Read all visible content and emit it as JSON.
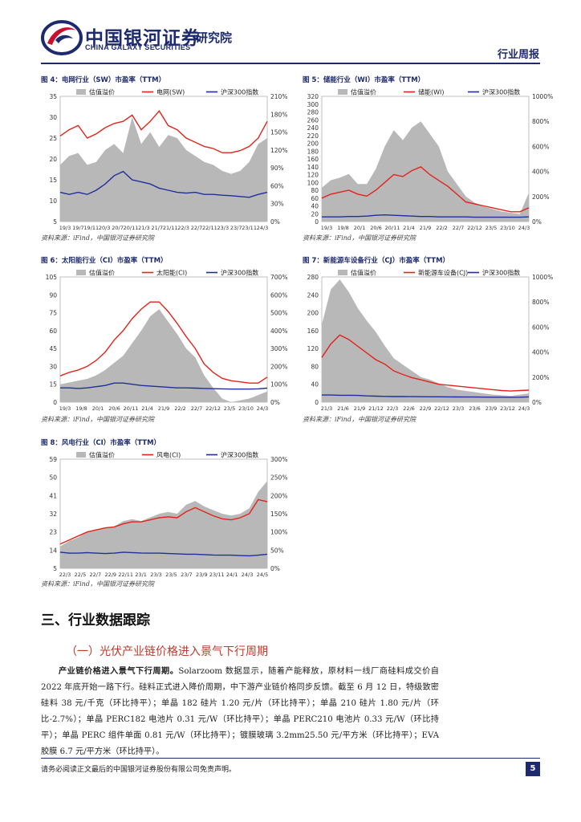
{
  "header": {
    "company_cn": "中国银河证券",
    "company_en": "CHINA GALAXY SECURITIES",
    "institute": "研究院",
    "report_type": "行业周报"
  },
  "colors": {
    "brand": "#1d2a6e",
    "logo_red": "#c8102e",
    "gray_fill": "#b8b8b8",
    "red_line": "#e3231b",
    "blue_line": "#1f2f9a"
  },
  "charts": [
    {
      "id": "fig4",
      "title": "图 4：电网行业（SW）市盈率（TTM）",
      "source": "资料来源：iFind，中国银河证券研究院",
      "legend": [
        "估值溢价",
        "电网(SW)",
        "沪深300指数"
      ],
      "left_ticks": [
        "35",
        "30",
        "25",
        "20",
        "15",
        "10",
        "5"
      ],
      "right_ticks": [
        "210%",
        "180%",
        "150%",
        "120%",
        "90%",
        "60%",
        "30%",
        "0%"
      ],
      "x_ticks": [
        "19/3",
        "19/7",
        "19/11",
        "20/3",
        "20/7",
        "20/11",
        "21/3",
        "21/7",
        "21/11",
        "22/3",
        "22/7",
        "22/11",
        "23/3",
        "23/7",
        "23/11",
        "24/3"
      ],
      "chart_data": {
        "type": "area+line",
        "ylim_left": [
          5,
          35
        ],
        "ylim_right": [
          0,
          210
        ],
        "series": [
          {
            "name": "估值溢价",
            "axis": "right",
            "values": [
              95,
              110,
              115,
              95,
              100,
              120,
              130,
              115,
              175,
              130,
              150,
              125,
              145,
              140,
              120,
              110,
              100,
              95,
              85,
              80,
              85,
              100,
              130,
              140
            ]
          },
          {
            "name": "电网(SW)",
            "axis": "left",
            "values": [
              25.5,
              27,
              28,
              25,
              26,
              27.5,
              28.5,
              29,
              30.5,
              27,
              29,
              31.5,
              28,
              27,
              25,
              24,
              23,
              22.5,
              21.5,
              21.5,
              22,
              23,
              25,
              29
            ]
          },
          {
            "name": "沪深300指数",
            "axis": "left",
            "values": [
              12,
              11.5,
              12,
              11.5,
              12.5,
              14,
              16,
              17,
              15,
              14.5,
              14,
              13,
              12.5,
              12,
              11.8,
              12,
              11.5,
              11.5,
              11.3,
              11.2,
              11,
              10.8,
              11.5,
              12
            ]
          }
        ]
      }
    },
    {
      "id": "fig5",
      "title": "图 5：储能行业（WI）市盈率（TTM）",
      "source": "资料来源：iFind，中国银河证券研究院",
      "legend": [
        "估值溢价",
        "储能(WI)",
        "沪深300指数"
      ],
      "left_ticks": [
        "320",
        "300",
        "280",
        "260",
        "240",
        "220",
        "200",
        "180",
        "160",
        "140",
        "120",
        "100",
        "80",
        "60",
        "40",
        "20",
        "0"
      ],
      "right_ticks": [
        "1000%",
        "800%",
        "600%",
        "400%",
        "200%",
        "0%"
      ],
      "x_ticks": [
        "19/3",
        "19/8",
        "20/1",
        "20/6",
        "20/11",
        "21/4",
        "21/9",
        "22/2",
        "22/7",
        "22/12",
        "23/5",
        "23/10",
        "24/3"
      ],
      "chart_data": {
        "type": "area+line",
        "ylim_left": [
          0,
          320
        ],
        "ylim_right": [
          0,
          1000
        ],
        "series": [
          {
            "name": "估值溢价",
            "axis": "right",
            "values": [
              270,
              330,
              350,
              380,
              300,
              300,
              420,
              600,
              730,
              650,
              750,
              800,
              700,
              600,
              400,
              300,
              200,
              150,
              120,
              100,
              80,
              70,
              60,
              230
            ]
          },
          {
            "name": "储能(WI)",
            "axis": "left",
            "values": [
              60,
              70,
              75,
              80,
              70,
              65,
              80,
              100,
              120,
              115,
              130,
              140,
              120,
              105,
              90,
              70,
              50,
              45,
              40,
              35,
              30,
              25,
              25,
              35
            ]
          },
          {
            "name": "沪深300指数",
            "axis": "left",
            "values": [
              12,
              12,
              12,
              13,
              13,
              14,
              16,
              17,
              16,
              15,
              14,
              13,
              13,
              12,
              12,
              12,
              12,
              11,
              11,
              11,
              11,
              11,
              11,
              12
            ]
          }
        ]
      }
    },
    {
      "id": "fig6",
      "title": "图 6：太阳能行业（CI）市盈率（TTM）",
      "source": "资料来源：iFind，中国银河证券研究院",
      "legend": [
        "估值溢价",
        "太阳能(CI)",
        "沪深300指数"
      ],
      "left_ticks": [
        "105",
        "90",
        "75",
        "60",
        "45",
        "30",
        "15",
        "0"
      ],
      "right_ticks": [
        "700%",
        "600%",
        "500%",
        "400%",
        "300%",
        "200%",
        "100%",
        "0%"
      ],
      "x_ticks": [
        "19/3",
        "19/8",
        "20/1",
        "20/6",
        "20/11",
        "21/4",
        "21/9",
        "22/2",
        "22/7",
        "22/12",
        "23/5",
        "23/10",
        "24/3"
      ],
      "chart_data": {
        "type": "area+line",
        "ylim_left": [
          0,
          105
        ],
        "ylim_right": [
          0,
          700
        ],
        "series": [
          {
            "name": "估值溢价",
            "axis": "right",
            "values": [
              100,
              110,
              120,
              130,
              150,
              180,
              220,
              260,
              330,
              400,
              480,
              520,
              450,
              380,
              300,
              250,
              150,
              80,
              20,
              0,
              10,
              20,
              40,
              60
            ]
          },
          {
            "name": "太阳能(CI)",
            "axis": "left",
            "values": [
              22,
              25,
              27,
              30,
              35,
              42,
              52,
              60,
              70,
              78,
              84,
              84,
              76,
              66,
              55,
              45,
              32,
              25,
              20,
              18,
              17,
              16,
              16,
              21
            ]
          },
          {
            "name": "沪深300指数",
            "axis": "left",
            "values": [
              12,
              12,
              11.5,
              12,
              13,
              14,
              16,
              16,
              15,
              14,
              13.5,
              13,
              12.5,
              12,
              12,
              11.8,
              11.5,
              11.3,
              11.2,
              11,
              11,
              11,
              11.2,
              11.8
            ]
          }
        ]
      }
    },
    {
      "id": "fig7",
      "title": "图 7：新能源车设备行业（CJ）市盈率（TTM）",
      "source": "资料来源：iFind，中国银河证券研究院",
      "legend": [
        "估值溢价",
        "新能源车设备(CJ)",
        "沪深300指数"
      ],
      "left_ticks": [
        "280",
        "240",
        "200",
        "160",
        "120",
        "80",
        "40",
        "0"
      ],
      "right_ticks": [
        "1000%",
        "800%",
        "600%",
        "400%",
        "200%",
        "0%"
      ],
      "x_ticks": [
        "21/3",
        "21/6",
        "21/9",
        "21/12",
        "22/3",
        "22/6",
        "22/9",
        "22/12",
        "23/3",
        "23/6",
        "23/9",
        "23/12",
        "24/3"
      ],
      "chart_data": {
        "type": "area+line",
        "ylim_left": [
          0,
          280
        ],
        "ylim_right": [
          0,
          1000
        ],
        "series": [
          {
            "name": "估值溢价",
            "axis": "right",
            "values": [
              620,
              900,
              980,
              880,
              750,
              650,
              560,
              450,
              350,
              300,
              250,
              200,
              180,
              150,
              120,
              100,
              90,
              80,
              70,
              60,
              55,
              50,
              60,
              70
            ]
          },
          {
            "name": "新能源车设备(CJ)",
            "axis": "left",
            "values": [
              100,
              130,
              150,
              140,
              125,
              110,
              95,
              85,
              70,
              62,
              55,
              50,
              45,
              40,
              38,
              36,
              34,
              32,
              30,
              28,
              26,
              25,
              26,
              27
            ]
          },
          {
            "name": "沪深300指数",
            "axis": "left",
            "values": [
              16,
              16,
              15.5,
              15.5,
              15,
              14,
              13.5,
              13,
              12.5,
              12.5,
              12.3,
              12.2,
              12,
              12,
              11.8,
              11.6,
              11.5,
              11.4,
              11.3,
              11.2,
              11.1,
              11,
              11.2,
              11.8
            ]
          }
        ]
      }
    },
    {
      "id": "fig8",
      "title": "图 8：风电行业（CI）市盈率（TTM）",
      "source": "资料来源：iFind，中国银河证券研究院",
      "legend": [
        "估值溢价",
        "风电(CI)",
        "沪深300指数"
      ],
      "left_ticks": [
        "59",
        "50",
        "41",
        "32",
        "23",
        "14",
        "5"
      ],
      "right_ticks": [
        "300%",
        "250%",
        "200%",
        "150%",
        "100%",
        "50%",
        "0%"
      ],
      "x_ticks": [
        "22/3",
        "22/5",
        "22/7",
        "22/9",
        "22/11",
        "23/1",
        "23/3",
        "23/5",
        "23/7",
        "23/9",
        "23/11",
        "24/1",
        "24/3",
        "24/5"
      ],
      "chart_data": {
        "type": "area+line",
        "ylim_left": [
          5,
          59
        ],
        "ylim_right": [
          0,
          300
        ],
        "series": [
          {
            "name": "估值溢价",
            "axis": "right",
            "values": [
              60,
              75,
              85,
              100,
              105,
              110,
              115,
              130,
              135,
              130,
              140,
              150,
              155,
              150,
              175,
              185,
              170,
              160,
              150,
              145,
              150,
              165,
              210,
              240
            ]
          },
          {
            "name": "风电(CI)",
            "axis": "left",
            "values": [
              17,
              19,
              21,
              23,
              24,
              25,
              25.5,
              27,
              28,
              28,
              29,
              30,
              30.5,
              30,
              33,
              35,
              33,
              31,
              29.5,
              29,
              30,
              32,
              39,
              38
            ]
          },
          {
            "name": "沪深300指数",
            "axis": "left",
            "values": [
              13,
              12.5,
              12.5,
              12.8,
              12.5,
              12.3,
              12.5,
              13,
              12.8,
              12.6,
              12.5,
              12.5,
              12.3,
              12.2,
              12,
              12,
              11.8,
              11.6,
              11.5,
              11.5,
              11.3,
              11.2,
              11.5,
              12
            ]
          }
        ]
      }
    }
  ],
  "section": {
    "title": "三、行业数据跟踪",
    "subtitle": "（一）光伏产业链价格进入景气下行周期"
  },
  "paragraph": {
    "lead": "产业链价格进入景气下行周期。",
    "body": "Solarzoom 数据显示，随着产能释放，原材料一线厂商硅料成交价自 2022 年底开始一路下行。硅料正式进入降价周期，中下游产业链价格同步反馈。截至 6 月 12 日，特级致密硅料 38 元/千克（环比持平）；单晶 182 硅片 1.20 元/片（环比持平）；单晶 210 硅片 1.80 元/片（环比-2.7%）；单晶 PERC182 电池片 0.31 元/W（环比持平）；单晶 PERC210 电池片 0.33 元/W（环比持平）；单晶 PERC 组件单面 0.81 元/W（环比持平）；镀膜玻璃 3.2mm25.50 元/平方米（环比持平）；EVA 胶膜 6.7 元/平方米（环比持平）。"
  },
  "footer": {
    "disclaimer": "请务必阅读正文最后的中国银河证券股份有限公司免责声明。",
    "page_number": "5"
  }
}
